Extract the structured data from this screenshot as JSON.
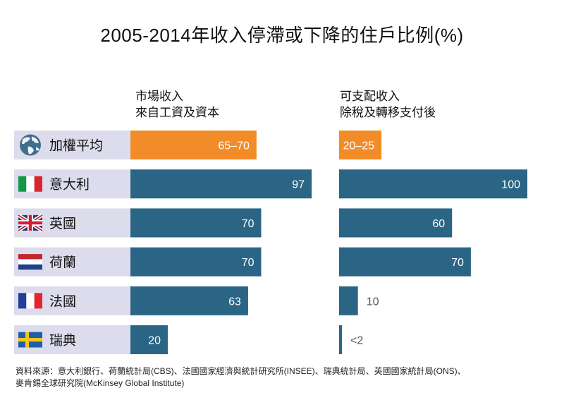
{
  "chart_data": {
    "type": "bar",
    "title": "2005-2014年收入停滯或下降的住戶比例(%)",
    "categories": [
      "加權平均",
      "意大利",
      "英國",
      "荷蘭",
      "法國",
      "瑞典"
    ],
    "category_icons": [
      "globe-icon",
      "italy-flag-icon",
      "uk-flag-icon",
      "netherlands-flag-icon",
      "france-flag-icon",
      "sweden-flag-icon"
    ],
    "series": [
      {
        "name": "市場收入 來自工資及資本",
        "header_lines": [
          "市場收入",
          "來自工資及資本"
        ],
        "values": [
          67.5,
          97,
          70,
          70,
          63,
          20
        ],
        "labels": [
          "65–70",
          "97",
          "70",
          "70",
          "63",
          "20"
        ]
      },
      {
        "name": "可支配收入 除稅及轉移支付後",
        "header_lines": [
          "可支配收入",
          "除稅及轉移支付後"
        ],
        "values": [
          22.5,
          100,
          60,
          70,
          10,
          1.5
        ],
        "labels": [
          "20–25",
          "100",
          "60",
          "70",
          "10",
          "<2"
        ]
      }
    ],
    "highlight_index": 0,
    "ylim": [
      0,
      100
    ]
  },
  "colors": {
    "highlight": "#F28C28",
    "bar": "#2A6585",
    "label_band": "#DCDCEC",
    "bar_label_light": "#ffffff",
    "bar_label_dark": "#555555"
  },
  "footer": {
    "line1": "資料來源：意大利銀行、荷蘭統計局(CBS)、法國國家經濟與統計研究所(INSEE)、瑞典統計局、英國國家統計局(ONS)、",
    "line2": "麥肯錫全球研究院(McKinsey Global Institute)"
  }
}
